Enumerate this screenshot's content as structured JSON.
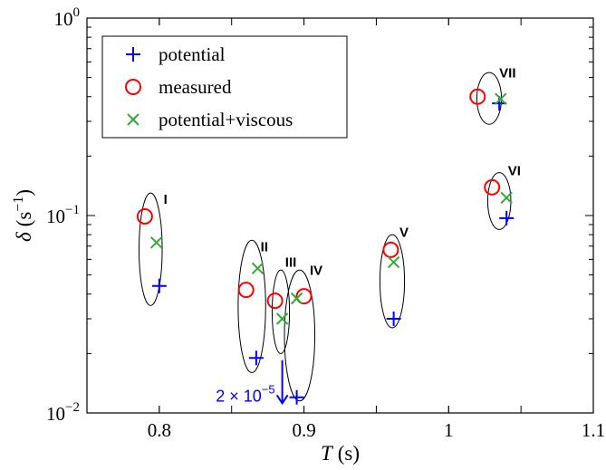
{
  "chart_data": {
    "type": "scatter",
    "xlabel_var": "T",
    "xlabel_unit": "(s)",
    "ylabel_var": "δ",
    "ylabel_unit_base": "(s",
    "ylabel_unit_exp": "−1",
    "ylabel_unit_close": ")",
    "xlim": [
      0.75,
      1.1
    ],
    "ylim": [
      0.01,
      1
    ],
    "yscale": "log",
    "grid": false,
    "legend_position": "top-left",
    "x_ticks": [
      {
        "value": 0.8,
        "label": "0.8"
      },
      {
        "value": 0.9,
        "label": "0.9"
      },
      {
        "value": 1.0,
        "label": "1"
      },
      {
        "value": 1.1,
        "label": "1.1"
      }
    ],
    "y_ticks": [
      {
        "value": 0.01,
        "base": "10",
        "exp": "−2"
      },
      {
        "value": 0.1,
        "base": "10",
        "exp": "−1"
      },
      {
        "value": 1,
        "base": "10",
        "exp": "0"
      }
    ],
    "series": [
      {
        "name": "potential",
        "marker": "plus",
        "color": "#0000ff",
        "points": [
          {
            "x": 0.8,
            "y": 0.044
          },
          {
            "x": 0.867,
            "y": 0.019
          },
          {
            "x": 0.895,
            "y": 0.012
          },
          {
            "x": 0.962,
            "y": 0.03
          },
          {
            "x": 1.04,
            "y": 0.097
          },
          {
            "x": 1.035,
            "y": 0.37
          }
        ]
      },
      {
        "name": "measured",
        "marker": "circle",
        "color": "#ff0000",
        "points": [
          {
            "x": 0.79,
            "y": 0.099
          },
          {
            "x": 0.86,
            "y": 0.042
          },
          {
            "x": 0.88,
            "y": 0.037
          },
          {
            "x": 0.9,
            "y": 0.039
          },
          {
            "x": 0.96,
            "y": 0.067
          },
          {
            "x": 1.03,
            "y": 0.139
          },
          {
            "x": 1.02,
            "y": 0.4
          }
        ]
      },
      {
        "name": "potential+viscous",
        "marker": "cross",
        "color": "#33aa33",
        "points": [
          {
            "x": 0.798,
            "y": 0.073
          },
          {
            "x": 0.868,
            "y": 0.054
          },
          {
            "x": 0.885,
            "y": 0.03
          },
          {
            "x": 0.895,
            "y": 0.038
          },
          {
            "x": 0.962,
            "y": 0.058
          },
          {
            "x": 1.04,
            "y": 0.123
          },
          {
            "x": 1.036,
            "y": 0.39
          }
        ]
      }
    ],
    "groups": [
      {
        "label": "I",
        "cx": 0.794,
        "ylo": 0.035,
        "yhi": 0.13,
        "rx": 0.008,
        "label_x": 0.803,
        "label_y": 0.115
      },
      {
        "label": "II",
        "cx": 0.864,
        "ylo": 0.016,
        "yhi": 0.075,
        "rx": 0.0095,
        "label_x": 0.87,
        "label_y": 0.066
      },
      {
        "label": "III",
        "cx": 0.884,
        "ylo": 0.02,
        "yhi": 0.053,
        "rx": 0.006,
        "label_x": 0.887,
        "label_y": 0.055
      },
      {
        "label": "IV",
        "cx": 0.897,
        "ylo": 0.0115,
        "yhi": 0.053,
        "rx": 0.0105,
        "label_x": 0.904,
        "label_y": 0.05
      },
      {
        "label": "V",
        "cx": 0.961,
        "ylo": 0.027,
        "yhi": 0.08,
        "rx": 0.0085,
        "label_x": 0.966,
        "label_y": 0.078
      },
      {
        "label": "VI",
        "cx": 1.035,
        "ylo": 0.085,
        "yhi": 0.165,
        "rx": 0.008,
        "label_x": 1.041,
        "label_y": 0.16
      },
      {
        "label": "VII",
        "cx": 1.028,
        "ylo": 0.29,
        "yhi": 0.53,
        "rx": 0.0085,
        "label_x": 1.035,
        "label_y": 0.5
      }
    ],
    "annotation": {
      "base": "2 × 10",
      "exp": "−5",
      "arrow_x": 0.885,
      "arrow_y_from": 0.0185,
      "arrow_y_to": 0.0112
    }
  }
}
